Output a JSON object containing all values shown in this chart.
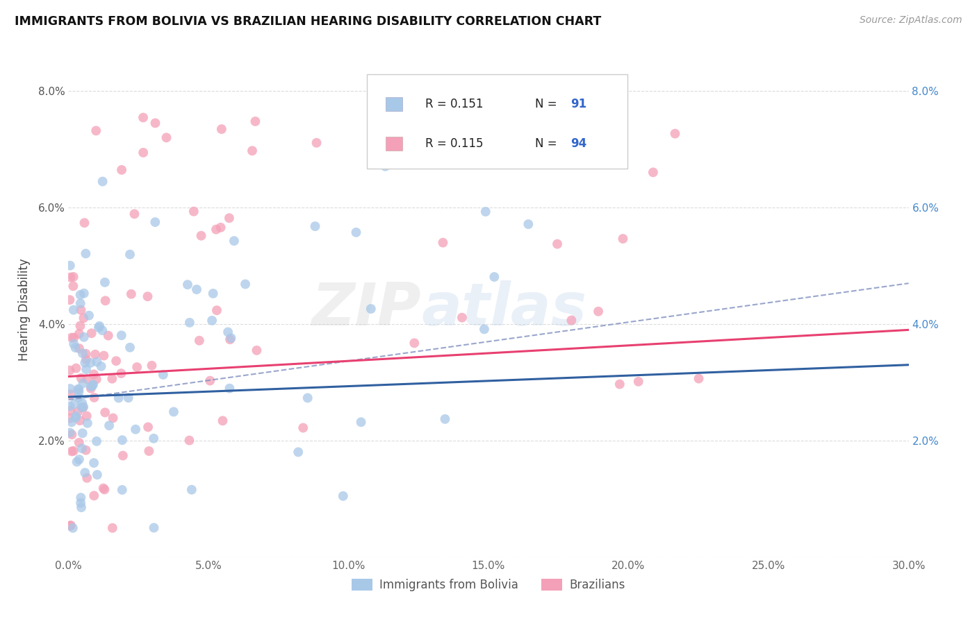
{
  "title": "IMMIGRANTS FROM BOLIVIA VS BRAZILIAN HEARING DISABILITY CORRELATION CHART",
  "source": "Source: ZipAtlas.com",
  "ylabel": "Hearing Disability",
  "xlim": [
    0.0,
    0.3
  ],
  "ylim": [
    0.0,
    0.085
  ],
  "xtick_vals": [
    0.0,
    0.05,
    0.1,
    0.15,
    0.2,
    0.25,
    0.3
  ],
  "xtick_labels": [
    "0.0%",
    "5.0%",
    "10.0%",
    "15.0%",
    "20.0%",
    "25.0%",
    "30.0%"
  ],
  "ytick_vals": [
    0.0,
    0.02,
    0.04,
    0.06,
    0.08
  ],
  "ytick_labels": [
    "",
    "2.0%",
    "4.0%",
    "6.0%",
    "8.0%"
  ],
  "color_bolivia": "#a8c8e8",
  "color_brazil": "#f4a0b8",
  "color_line_bolivia": "#3060a0",
  "color_line_brazil": "#e84070",
  "color_dashed": "#8090c0",
  "watermark_zip": "ZIP",
  "watermark_atlas": "atlas",
  "legend_R1": "R = 0.151",
  "legend_N1": "N = 91",
  "legend_R2": "R = 0.115",
  "legend_N2": "N = 94",
  "legend_label1": "Immigrants from Bolivia",
  "legend_label2": "Brazilians",
  "bolivia_line_x0": 0.0,
  "bolivia_line_y0": 0.0275,
  "bolivia_line_x1": 0.3,
  "bolivia_line_y1": 0.033,
  "brazil_line_x0": 0.0,
  "brazil_line_y0": 0.031,
  "brazil_line_x1": 0.3,
  "brazil_line_y1": 0.039,
  "dashed_line_x0": 0.0,
  "dashed_line_y0": 0.027,
  "dashed_line_x1": 0.3,
  "dashed_line_y1": 0.047
}
